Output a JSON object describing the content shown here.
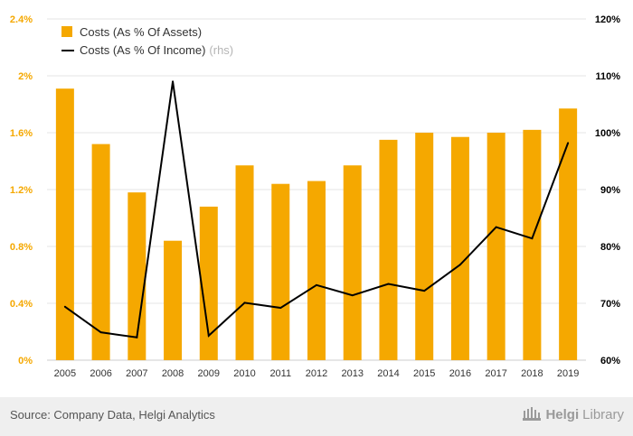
{
  "chart_data": {
    "type": "bar",
    "categories": [
      "2005",
      "2006",
      "2007",
      "2008",
      "2009",
      "2010",
      "2011",
      "2012",
      "2013",
      "2014",
      "2015",
      "2016",
      "2017",
      "2018",
      "2019"
    ],
    "series": [
      {
        "name": "Costs (As % Of Assets)",
        "kind": "bar",
        "axis": "left",
        "color": "#F5A800",
        "values": [
          1.91,
          1.52,
          1.18,
          0.84,
          1.08,
          1.37,
          1.24,
          1.26,
          1.37,
          1.55,
          1.6,
          1.57,
          1.6,
          1.62,
          1.77
        ]
      },
      {
        "name": "Costs (As % Of Income)",
        "name_suffix": "(rhs)",
        "kind": "line",
        "axis": "right",
        "color": "#000000",
        "values": [
          69.4,
          64.9,
          64.0,
          109.0,
          64.3,
          70.1,
          69.2,
          73.2,
          71.4,
          73.4,
          72.2,
          76.8,
          83.4,
          81.4,
          98.2
        ]
      }
    ],
    "y_left": {
      "ylim": [
        0,
        2.4
      ],
      "ticks": [
        0,
        0.4,
        0.8,
        1.2,
        1.6,
        2.0,
        2.4
      ],
      "tick_labels": [
        "0%",
        "0.4%",
        "0.8%",
        "1.2%",
        "1.6%",
        "2%",
        "2.4%"
      ],
      "tick_color": "#F5A800"
    },
    "y_right": {
      "ylim": [
        60,
        120
      ],
      "ticks": [
        60,
        70,
        80,
        90,
        100,
        110,
        120
      ],
      "tick_labels": [
        "60%",
        "70%",
        "80%",
        "90%",
        "100%",
        "110%",
        "120%"
      ],
      "tick_color": "#000000"
    },
    "grid": true,
    "legend_placement": "top-left",
    "xlabel": "",
    "ylabel": ""
  },
  "footer": {
    "source": "Source: Company Data, Helgi Analytics",
    "logo_bold": "Helgi",
    "logo_regular": "Library",
    "logo_icon": "helgi-library-building-icon"
  }
}
